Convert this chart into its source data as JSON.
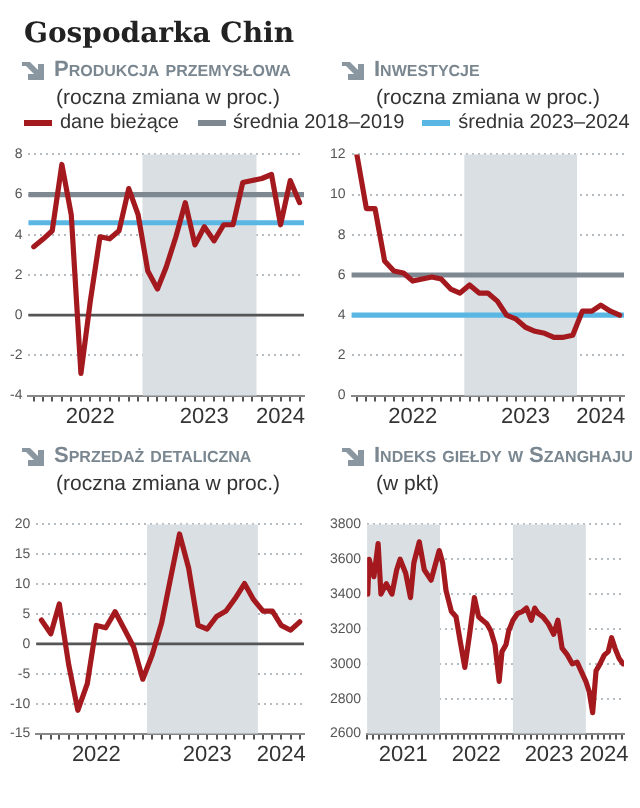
{
  "chart_data": [
    {
      "type": "line",
      "title": "Produkcja przemysłowa",
      "subtitle": "(roczna zmiana w proc.)",
      "annotations": [
        "Gospodarka Chin"
      ],
      "x": [
        "2022-01",
        "2022-02",
        "2022-03",
        "2022-04",
        "2022-05",
        "2022-06",
        "2022-07",
        "2022-08",
        "2022-09",
        "2022-10",
        "2022-11",
        "2022-12",
        "2023-01",
        "2023-02",
        "2023-03",
        "2023-04",
        "2023-05",
        "2023-06",
        "2023-07",
        "2023-08",
        "2023-09",
        "2023-10",
        "2023-11",
        "2023-12",
        "2024-01",
        "2024-02",
        "2024-03",
        "2024-04",
        "2024-05"
      ],
      "series": [
        {
          "name": "dane bieżące",
          "color": "#a3191e",
          "values": [
            3.4,
            3.8,
            4.2,
            7.5,
            5.0,
            -2.9,
            0.7,
            3.9,
            3.8,
            4.2,
            6.3,
            5.0,
            2.2,
            1.3,
            2.4,
            3.9,
            5.6,
            3.5,
            4.4,
            3.7,
            4.5,
            4.5,
            6.6,
            6.7,
            6.8,
            7.0,
            4.5,
            6.7,
            5.6
          ]
        }
      ],
      "xlim": [
        "2021-12-15",
        "2024-05-15"
      ],
      "xticks": [
        {
          "value": "2022-01",
          "label": null
        },
        {
          "value": "2022-02",
          "label": null
        },
        {
          "value": "2022-03",
          "label": null
        },
        {
          "value": "2022-04",
          "label": null
        },
        {
          "value": "2022-05",
          "label": null
        },
        {
          "value": "2022-06",
          "label": null
        },
        {
          "value": "2022-07",
          "label": "2022"
        },
        {
          "value": "2022-08",
          "label": null
        },
        {
          "value": "2022-09",
          "label": null
        },
        {
          "value": "2022-10",
          "label": null
        },
        {
          "value": "2022-11",
          "label": null
        },
        {
          "value": "2022-12",
          "label": null
        },
        {
          "value": "2023-01",
          "label": null
        },
        {
          "value": "2023-02",
          "label": null
        },
        {
          "value": "2023-03",
          "label": null
        },
        {
          "value": "2023-04",
          "label": null
        },
        {
          "value": "2023-05",
          "label": null
        },
        {
          "value": "2023-06",
          "label": null
        },
        {
          "value": "2023-07",
          "label": "2023"
        },
        {
          "value": "2023-08",
          "label": null
        },
        {
          "value": "2023-09",
          "label": null
        },
        {
          "value": "2023-10",
          "label": null
        },
        {
          "value": "2023-11",
          "label": null
        },
        {
          "value": "2023-12",
          "label": null
        },
        {
          "value": "2024-01",
          "label": null
        },
        {
          "value": "2024-02",
          "label": null
        },
        {
          "value": "2024-03",
          "label": "2024"
        },
        {
          "value": "2024-04",
          "label": null
        },
        {
          "value": "2024-05",
          "label": null
        }
      ],
      "ylim": [
        -4,
        8
      ],
      "yticks": [
        -4,
        -2,
        0,
        2,
        4,
        6,
        8
      ],
      "grid": "y",
      "legend": "top",
      "ref_lines": [
        {
          "axis": "y",
          "value": 0,
          "color": "#555555"
        },
        {
          "axis": "y",
          "value": 6,
          "label": "średnia 2018–2019",
          "color": "#7d8891"
        },
        {
          "axis": "y",
          "value": 4.6,
          "label": "średnia 2023–2024",
          "color": "#5ab7e4"
        }
      ],
      "bands": [
        {
          "axis": "x",
          "from": "2022-12-15",
          "to": "2023-12-15",
          "color": "#d9dfe3"
        }
      ]
    },
    {
      "type": "line",
      "title": "Inwestycje",
      "subtitle": "(roczna zmiana w proc.)",
      "x": [
        "2022-01",
        "2022-02",
        "2022-03",
        "2022-04",
        "2022-05",
        "2022-06",
        "2022-07",
        "2022-08",
        "2022-09",
        "2022-10",
        "2022-11",
        "2022-12",
        "2023-01",
        "2023-02",
        "2023-03",
        "2023-04",
        "2023-05",
        "2023-06",
        "2023-07",
        "2023-08",
        "2023-09",
        "2023-10",
        "2023-11",
        "2023-12",
        "2024-01",
        "2024-02",
        "2024-03",
        "2024-04",
        "2024-05"
      ],
      "series": [
        {
          "color": "#a3191e",
          "values": [
            12.0,
            9.3,
            9.3,
            6.7,
            6.2,
            6.1,
            5.7,
            5.8,
            5.9,
            5.8,
            5.3,
            5.1,
            5.5,
            5.1,
            5.1,
            4.7,
            4.0,
            3.8,
            3.4,
            3.2,
            3.1,
            2.9,
            2.9,
            3.0,
            4.2,
            4.2,
            4.5,
            4.2,
            4.0
          ]
        }
      ],
      "xlim": [
        "2021-12-15",
        "2024-05-15"
      ],
      "xticks": [
        {
          "value": "2022-01",
          "label": null
        },
        {
          "value": "2022-02",
          "label": null
        },
        {
          "value": "2022-03",
          "label": null
        },
        {
          "value": "2022-04",
          "label": null
        },
        {
          "value": "2022-05",
          "label": null
        },
        {
          "value": "2022-06",
          "label": null
        },
        {
          "value": "2022-07",
          "label": "2022"
        },
        {
          "value": "2022-08",
          "label": null
        },
        {
          "value": "2022-09",
          "label": null
        },
        {
          "value": "2022-10",
          "label": null
        },
        {
          "value": "2022-11",
          "label": null
        },
        {
          "value": "2022-12",
          "label": null
        },
        {
          "value": "2023-01",
          "label": null
        },
        {
          "value": "2023-02",
          "label": null
        },
        {
          "value": "2023-03",
          "label": null
        },
        {
          "value": "2023-04",
          "label": null
        },
        {
          "value": "2023-05",
          "label": null
        },
        {
          "value": "2023-06",
          "label": null
        },
        {
          "value": "2023-07",
          "label": "2023"
        },
        {
          "value": "2023-08",
          "label": null
        },
        {
          "value": "2023-09",
          "label": null
        },
        {
          "value": "2023-10",
          "label": null
        },
        {
          "value": "2023-11",
          "label": null
        },
        {
          "value": "2023-12",
          "label": null
        },
        {
          "value": "2024-01",
          "label": null
        },
        {
          "value": "2024-02",
          "label": null
        },
        {
          "value": "2024-03",
          "label": "2024"
        },
        {
          "value": "2024-04",
          "label": null
        },
        {
          "value": "2024-05",
          "label": null
        }
      ],
      "ylim": [
        0,
        12
      ],
      "yticks": [
        0,
        2,
        4,
        6,
        8,
        10,
        12
      ],
      "grid": "y",
      "ref_lines": [
        {
          "axis": "y",
          "value": 6,
          "color": "#7d8891"
        },
        {
          "axis": "y",
          "value": 4,
          "color": "#5ab7e4"
        }
      ],
      "bands": [
        {
          "axis": "x",
          "from": "2022-12-15",
          "to": "2023-12-15",
          "color": "#d9dfe3"
        }
      ]
    },
    {
      "type": "line",
      "title": "Sprzedaż detaliczna",
      "subtitle": "(roczna zmiana w proc.)",
      "x": [
        "2022-01",
        "2022-02",
        "2022-03",
        "2022-04",
        "2022-05",
        "2022-06",
        "2022-07",
        "2022-08",
        "2022-09",
        "2022-10",
        "2022-11",
        "2022-12",
        "2023-01",
        "2023-02",
        "2023-03",
        "2023-04",
        "2023-05",
        "2023-06",
        "2023-07",
        "2023-08",
        "2023-09",
        "2023-10",
        "2023-11",
        "2023-12",
        "2024-01",
        "2024-02",
        "2024-03",
        "2024-04",
        "2024-05"
      ],
      "series": [
        {
          "color": "#a3191e",
          "values": [
            4.0,
            1.7,
            6.7,
            -3.5,
            -11.1,
            -6.7,
            3.1,
            2.7,
            5.4,
            2.5,
            -0.5,
            -5.9,
            -1.8,
            3.5,
            10.6,
            18.4,
            12.7,
            3.1,
            2.5,
            4.6,
            5.5,
            7.6,
            10.1,
            7.4,
            5.5,
            5.5,
            3.1,
            2.3,
            3.7
          ]
        }
      ],
      "xlim": [
        "2021-12-15",
        "2024-05-15"
      ],
      "xticks": [
        {
          "value": "2022-01",
          "label": null
        },
        {
          "value": "2022-02",
          "label": null
        },
        {
          "value": "2022-03",
          "label": null
        },
        {
          "value": "2022-04",
          "label": null
        },
        {
          "value": "2022-05",
          "label": null
        },
        {
          "value": "2022-06",
          "label": null
        },
        {
          "value": "2022-07",
          "label": "2022"
        },
        {
          "value": "2022-08",
          "label": null
        },
        {
          "value": "2022-09",
          "label": null
        },
        {
          "value": "2022-10",
          "label": null
        },
        {
          "value": "2022-11",
          "label": null
        },
        {
          "value": "2022-12",
          "label": null
        },
        {
          "value": "2023-01",
          "label": null
        },
        {
          "value": "2023-02",
          "label": null
        },
        {
          "value": "2023-03",
          "label": null
        },
        {
          "value": "2023-04",
          "label": null
        },
        {
          "value": "2023-05",
          "label": null
        },
        {
          "value": "2023-06",
          "label": null
        },
        {
          "value": "2023-07",
          "label": "2023"
        },
        {
          "value": "2023-08",
          "label": null
        },
        {
          "value": "2023-09",
          "label": null
        },
        {
          "value": "2023-10",
          "label": null
        },
        {
          "value": "2023-11",
          "label": null
        },
        {
          "value": "2023-12",
          "label": null
        },
        {
          "value": "2024-01",
          "label": null
        },
        {
          "value": "2024-02",
          "label": null
        },
        {
          "value": "2024-03",
          "label": "2024"
        },
        {
          "value": "2024-04",
          "label": null
        },
        {
          "value": "2024-05",
          "label": null
        }
      ],
      "ylim": [
        -15,
        20
      ],
      "yticks": [
        -15,
        -10,
        -5,
        0,
        5,
        10,
        15,
        20
      ],
      "grid": "y",
      "ref_lines": [
        {
          "axis": "y",
          "value": 0,
          "color": "#555555"
        }
      ],
      "bands": [
        {
          "axis": "x",
          "from": "2022-12-15",
          "to": "2023-12-15",
          "color": "#d9dfe3"
        }
      ]
    },
    {
      "type": "line",
      "title": "Indeks giełdy w Szanghaju",
      "subtitle": "(w pkt)",
      "x": [
        "2021-01-04",
        "2021-01-11",
        "2021-02-04",
        "2021-02-25",
        "2021-03-11",
        "2021-04-07",
        "2021-05-05",
        "2021-05-29",
        "2021-06-15",
        "2021-07-13",
        "2021-08-06",
        "2021-08-23",
        "2021-09-19",
        "2021-10-14",
        "2021-11-17",
        "2021-12-11",
        "2021-12-28",
        "2022-01-14",
        "2022-01-31",
        "2022-02-27",
        "2022-03-22",
        "2022-04-15",
        "2022-05-05",
        "2022-05-29",
        "2022-06-22",
        "2022-07-13",
        "2022-08-02",
        "2022-08-23",
        "2022-09-12",
        "2022-10-03",
        "2022-10-24",
        "2022-11-07",
        "2022-11-27",
        "2022-12-11",
        "2023-01-01",
        "2023-01-25",
        "2023-02-17",
        "2023-03-10",
        "2023-04-03",
        "2023-04-20",
        "2023-05-07",
        "2023-05-31",
        "2023-06-27",
        "2023-07-24",
        "2023-08-14",
        "2023-09-04",
        "2023-10-01",
        "2023-10-25",
        "2023-11-18",
        "2023-12-08",
        "2024-01-01",
        "2024-01-18",
        "2024-02-04",
        "2024-02-21",
        "2024-03-12",
        "2024-04-02",
        "2024-04-22",
        "2024-05-09",
        "2024-05-26",
        "2024-06-16",
        "2024-07-06"
      ],
      "series": [
        {
          "color": "#a3191e",
          "values": [
            3400,
            3600,
            3500,
            3690,
            3400,
            3460,
            3400,
            3540,
            3600,
            3520,
            3380,
            3580,
            3700,
            3540,
            3480,
            3580,
            3650,
            3580,
            3420,
            3300,
            3270,
            3110,
            2980,
            3170,
            3380,
            3270,
            3250,
            3230,
            3190,
            3110,
            2900,
            3070,
            3110,
            3190,
            3250,
            3290,
            3300,
            3320,
            3250,
            3320,
            3290,
            3270,
            3230,
            3170,
            3250,
            3090,
            3050,
            3000,
            3010,
            2960,
            2900,
            2840,
            2720,
            2960,
            3000,
            3050,
            3070,
            3150,
            3090,
            3030,
            3000
          ]
        }
      ],
      "xlim": [
        "2021-01-01",
        "2024-07-10"
      ],
      "xticks": [
        {
          "value": "2021-01",
          "label": null
        },
        {
          "value": "2021-02",
          "label": null
        },
        {
          "value": "2021-03",
          "label": null
        },
        {
          "value": "2021-04",
          "label": null
        },
        {
          "value": "2021-05",
          "label": null
        },
        {
          "value": "2021-06",
          "label": null
        },
        {
          "value": "2021-07",
          "label": "2021"
        },
        {
          "value": "2021-08",
          "label": null
        },
        {
          "value": "2021-09",
          "label": null
        },
        {
          "value": "2021-10",
          "label": null
        },
        {
          "value": "2021-11",
          "label": null
        },
        {
          "value": "2021-12",
          "label": null
        },
        {
          "value": "2022-01",
          "label": null
        },
        {
          "value": "2022-02",
          "label": null
        },
        {
          "value": "2022-03",
          "label": null
        },
        {
          "value": "2022-04",
          "label": null
        },
        {
          "value": "2022-05",
          "label": null
        },
        {
          "value": "2022-06",
          "label": null
        },
        {
          "value": "2022-07",
          "label": "2022"
        },
        {
          "value": "2022-08",
          "label": null
        },
        {
          "value": "2022-09",
          "label": null
        },
        {
          "value": "2022-10",
          "label": null
        },
        {
          "value": "2022-11",
          "label": null
        },
        {
          "value": "2022-12",
          "label": null
        },
        {
          "value": "2023-01",
          "label": null
        },
        {
          "value": "2023-02",
          "label": null
        },
        {
          "value": "2023-03",
          "label": null
        },
        {
          "value": "2023-04",
          "label": null
        },
        {
          "value": "2023-05",
          "label": null
        },
        {
          "value": "2023-06",
          "label": null
        },
        {
          "value": "2023-07",
          "label": "2023"
        },
        {
          "value": "2023-08",
          "label": null
        },
        {
          "value": "2023-09",
          "label": null
        },
        {
          "value": "2023-10",
          "label": null
        },
        {
          "value": "2023-11",
          "label": null
        },
        {
          "value": "2023-12",
          "label": null
        },
        {
          "value": "2024-01",
          "label": null
        },
        {
          "value": "2024-02",
          "label": null
        },
        {
          "value": "2024-03",
          "label": null
        },
        {
          "value": "2024-04",
          "label": "2024"
        },
        {
          "value": "2024-05",
          "label": null
        },
        {
          "value": "2024-06",
          "label": null
        },
        {
          "value": "2024-07",
          "label": null
        }
      ],
      "ylim": [
        2600,
        3800
      ],
      "yticks": [
        2600,
        2800,
        3000,
        3200,
        3400,
        3600,
        3800
      ],
      "grid": "y",
      "bands": [
        {
          "axis": "x",
          "from": "2021-01-01",
          "to": "2022-01-01",
          "color": "#d9dfe3"
        },
        {
          "axis": "x",
          "from": "2023-01-01",
          "to": "2024-01-01",
          "color": "#d9dfe3"
        }
      ]
    }
  ]
}
